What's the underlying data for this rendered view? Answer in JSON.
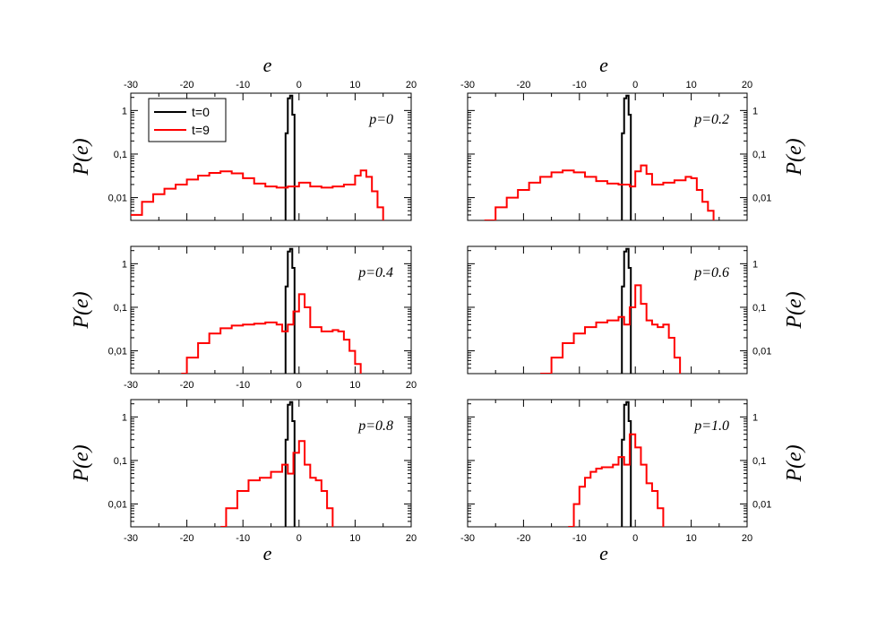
{
  "chart_data": {
    "type": "line",
    "xlabel": "e",
    "ylabel": "P(e)",
    "x_ticks": [
      "-30",
      "-20",
      "-10",
      "0",
      "10",
      "20"
    ],
    "y_ticks": [
      "0,01",
      "0,1",
      "1"
    ],
    "xlim": [
      -30,
      20
    ],
    "ylim": [
      0.003,
      2.5
    ],
    "yscale": "log",
    "legend": {
      "entries": [
        "t=0",
        "t=9"
      ],
      "placement": "top-left of first panel"
    },
    "colors": {
      "t0": "#000000",
      "t9": "#ff0000"
    },
    "panels": [
      {
        "label": "p=0",
        "series": [
          {
            "name": "t=0",
            "x": [
              -2.2,
              -1.8,
              -1.4,
              -1.0
            ],
            "values": [
              0.3,
              1.9,
              2.2,
              0.8
            ]
          },
          {
            "name": "t=9",
            "x": [
              -30,
              -28,
              -26,
              -24,
              -22,
              -20,
              -18,
              -16,
              -14,
              -12,
              -10,
              -8,
              -6,
              -4,
              -2,
              0,
              2,
              4,
              6,
              8,
              10,
              11,
              12,
              13,
              14,
              15
            ],
            "values": [
              0.004,
              0.008,
              0.012,
              0.016,
              0.02,
              0.026,
              0.032,
              0.037,
              0.04,
              0.036,
              0.028,
              0.021,
              0.018,
              0.017,
              0.018,
              0.022,
              0.018,
              0.017,
              0.018,
              0.02,
              0.032,
              0.042,
              0.03,
              0.014,
              0.006,
              0.003
            ]
          }
        ]
      },
      {
        "label": "p=0.2",
        "series": [
          {
            "name": "t=0",
            "x": [
              -2.2,
              -1.8,
              -1.4,
              -1.0
            ],
            "values": [
              0.3,
              1.9,
              2.2,
              0.8
            ]
          },
          {
            "name": "t=9",
            "x": [
              -27,
              -25,
              -23,
              -21,
              -19,
              -17,
              -15,
              -13,
              -11,
              -9,
              -7,
              -5,
              -3,
              -1,
              0,
              1,
              2,
              3,
              5,
              7,
              9,
              10,
              11,
              12,
              13,
              14
            ],
            "values": [
              0.003,
              0.006,
              0.01,
              0.015,
              0.022,
              0.03,
              0.038,
              0.042,
              0.038,
              0.03,
              0.024,
              0.021,
              0.02,
              0.018,
              0.04,
              0.055,
              0.035,
              0.02,
              0.022,
              0.025,
              0.03,
              0.028,
              0.015,
              0.008,
              0.005,
              0.003
            ]
          }
        ]
      },
      {
        "label": "p=0.4",
        "series": [
          {
            "name": "t=0",
            "x": [
              -2.2,
              -1.8,
              -1.4,
              -1.0
            ],
            "values": [
              0.3,
              1.9,
              2.2,
              0.8
            ]
          },
          {
            "name": "t=9",
            "x": [
              -21,
              -20,
              -18,
              -16,
              -14,
              -12,
              -10,
              -8,
              -6,
              -4,
              -3,
              -2,
              -1,
              0,
              1,
              2,
              4,
              6,
              7,
              8,
              9,
              10,
              11
            ],
            "values": [
              0.003,
              0.007,
              0.015,
              0.025,
              0.033,
              0.038,
              0.04,
              0.042,
              0.045,
              0.04,
              0.028,
              0.04,
              0.08,
              0.2,
              0.1,
              0.035,
              0.028,
              0.03,
              0.028,
              0.018,
              0.01,
              0.005,
              0.003
            ]
          }
        ]
      },
      {
        "label": "p=0.6",
        "series": [
          {
            "name": "t=0",
            "x": [
              -2.2,
              -1.8,
              -1.4,
              -1.0
            ],
            "values": [
              0.3,
              1.9,
              2.2,
              0.8
            ]
          },
          {
            "name": "t=9",
            "x": [
              -17,
              -15,
              -13,
              -11,
              -9,
              -7,
              -5,
              -3,
              -2,
              -1,
              0,
              1,
              2,
              3,
              4,
              5,
              6,
              7,
              8
            ],
            "values": [
              0.003,
              0.007,
              0.015,
              0.025,
              0.035,
              0.045,
              0.05,
              0.06,
              0.04,
              0.1,
              0.32,
              0.12,
              0.05,
              0.04,
              0.035,
              0.04,
              0.02,
              0.007,
              0.003
            ]
          }
        ]
      },
      {
        "label": "p=0.8",
        "series": [
          {
            "name": "t=0",
            "x": [
              -2.2,
              -1.8,
              -1.4,
              -1.0
            ],
            "values": [
              0.3,
              1.9,
              2.2,
              0.8
            ]
          },
          {
            "name": "t=9",
            "x": [
              -14,
              -13,
              -11,
              -9,
              -7,
              -5,
              -3,
              -2,
              -1,
              0,
              1,
              2,
              3,
              4,
              5,
              6
            ],
            "values": [
              0.003,
              0.008,
              0.02,
              0.035,
              0.04,
              0.055,
              0.08,
              0.05,
              0.15,
              0.28,
              0.08,
              0.04,
              0.035,
              0.02,
              0.008,
              0.003
            ]
          }
        ]
      },
      {
        "label": "p=1.0",
        "series": [
          {
            "name": "t=0",
            "x": [
              -2.2,
              -1.8,
              -1.4,
              -1.0
            ],
            "values": [
              0.3,
              1.9,
              2.2,
              0.8
            ]
          },
          {
            "name": "t=9",
            "x": [
              -12,
              -11,
              -10,
              -9,
              -8,
              -7,
              -6,
              -4,
              -3,
              -2,
              -1,
              0,
              1,
              2,
              3,
              4,
              5
            ],
            "values": [
              0.003,
              0.01,
              0.025,
              0.04,
              0.055,
              0.065,
              0.07,
              0.08,
              0.12,
              0.08,
              0.4,
              0.2,
              0.08,
              0.03,
              0.02,
              0.008,
              0.003
            ]
          }
        ]
      }
    ]
  }
}
